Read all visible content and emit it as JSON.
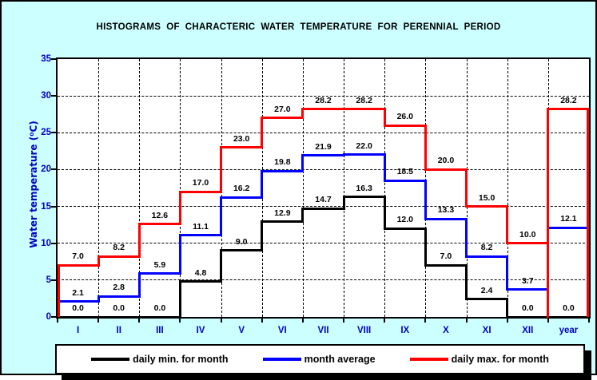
{
  "title": "HISTOGRAMS  OF  CHARACTERIC  WATER  TEMPERATURE  FOR  PERENNIAL  PERIOD",
  "colors": {
    "panel_background": "#CCFFFF",
    "plot_background": "#FFFFFF",
    "axis_label": "#0000C0",
    "series_min": "#000000",
    "series_avg": "#0000FF",
    "series_max": "#FF0000"
  },
  "chart_data": {
    "type": "line",
    "step": true,
    "title": "HISTOGRAMS  OF  CHARACTERIC  WATER  TEMPERATURE  FOR  PERENNIAL  PERIOD",
    "categories": [
      "I",
      "II",
      "III",
      "IV",
      "V",
      "VI",
      "VII",
      "VIII",
      "IX",
      "X",
      "XI",
      "XII",
      "year"
    ],
    "series": [
      {
        "name": "daily min. for month",
        "color": "#000000",
        "values": [
          0.0,
          0.0,
          0.0,
          4.8,
          9.0,
          12.9,
          14.7,
          16.3,
          12.0,
          7.0,
          2.4,
          0.0,
          0.0
        ],
        "edge_verticals": false
      },
      {
        "name": "month average",
        "color": "#0000FF",
        "values": [
          2.1,
          2.8,
          5.9,
          11.1,
          16.2,
          19.8,
          21.9,
          22.0,
          18.5,
          13.3,
          8.2,
          3.7,
          12.1
        ],
        "edge_verticals": false
      },
      {
        "name": "daily max. for month",
        "color": "#FF0000",
        "values": [
          7.0,
          8.2,
          12.6,
          17.0,
          23.0,
          27.0,
          28.2,
          28.2,
          26.0,
          20.0,
          15.0,
          10.0,
          28.2
        ],
        "edge_verticals": true
      }
    ],
    "xlabel": "",
    "ylabel": "Water temperature (⁰C)",
    "ylim": [
      0,
      35
    ],
    "ytick_step": 5,
    "grid": true,
    "legend_position": "bottom"
  }
}
